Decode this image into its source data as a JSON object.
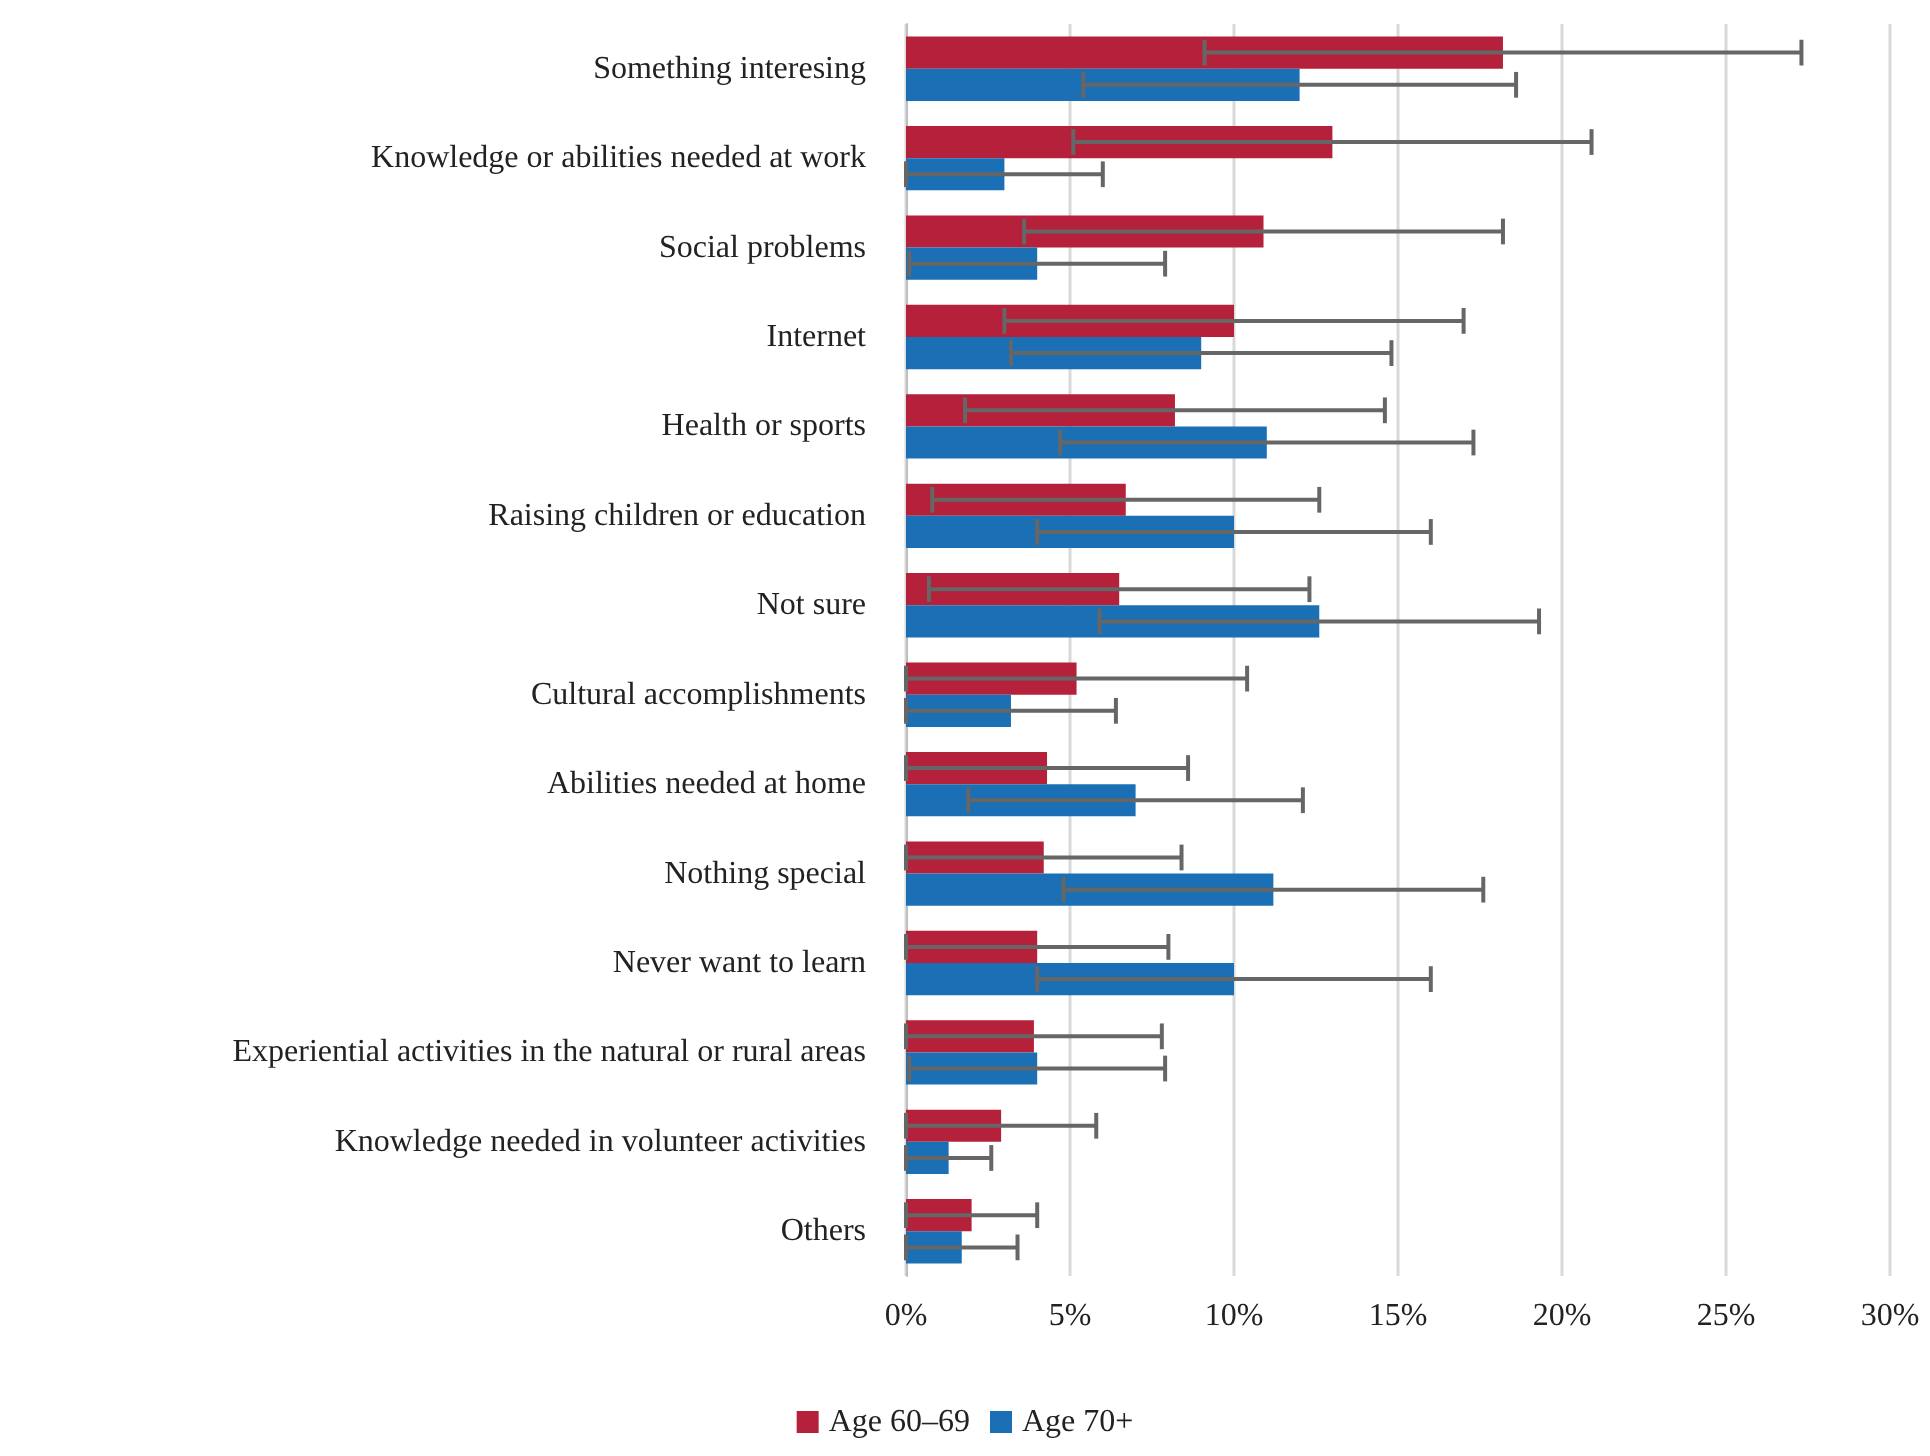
{
  "chart_data": {
    "type": "bar",
    "orientation": "horizontal",
    "categories": [
      "Something interesing",
      "Knowledge or abilities needed at work",
      "Social problems",
      "Internet",
      "Health or sports",
      "Raising children or education",
      "Not sure",
      "Cultural accomplishments",
      "Abilities needed at home",
      "Nothing special",
      "Never want to learn",
      "Experiential activities in the natural or rural areas",
      "Knowledge needed in volunteer activities",
      "Others"
    ],
    "series": [
      {
        "name": "Age 60–69",
        "color": "#b5213a",
        "values": [
          18.2,
          13.0,
          10.9,
          10.0,
          8.2,
          6.7,
          6.5,
          5.2,
          4.3,
          4.2,
          4.0,
          3.9,
          2.9,
          2.0
        ],
        "errors": [
          9.1,
          7.9,
          7.3,
          7.0,
          6.4,
          5.9,
          5.8,
          5.2,
          4.3,
          4.2,
          4.0,
          3.9,
          2.9,
          2.0
        ]
      },
      {
        "name": "Age 70+",
        "color": "#1a6fb5",
        "values": [
          12.0,
          3.0,
          4.0,
          9.0,
          11.0,
          10.0,
          12.6,
          3.2,
          7.0,
          11.2,
          10.0,
          4.0,
          1.3,
          1.7
        ],
        "errors": [
          6.6,
          3.0,
          3.9,
          5.8,
          6.3,
          6.0,
          6.7,
          3.2,
          5.1,
          6.4,
          6.0,
          3.9,
          1.3,
          1.7
        ]
      }
    ],
    "xlim": [
      0,
      30
    ],
    "xticks": [
      {
        "value": 0,
        "label": "0%"
      },
      {
        "value": 5,
        "label": "5%"
      },
      {
        "value": 10,
        "label": "10%"
      },
      {
        "value": 15,
        "label": "15%"
      },
      {
        "value": 20,
        "label": "20%"
      },
      {
        "value": 25,
        "label": "25%"
      },
      {
        "value": 30,
        "label": "30%"
      }
    ],
    "grid": "x",
    "legend": "bottom"
  }
}
